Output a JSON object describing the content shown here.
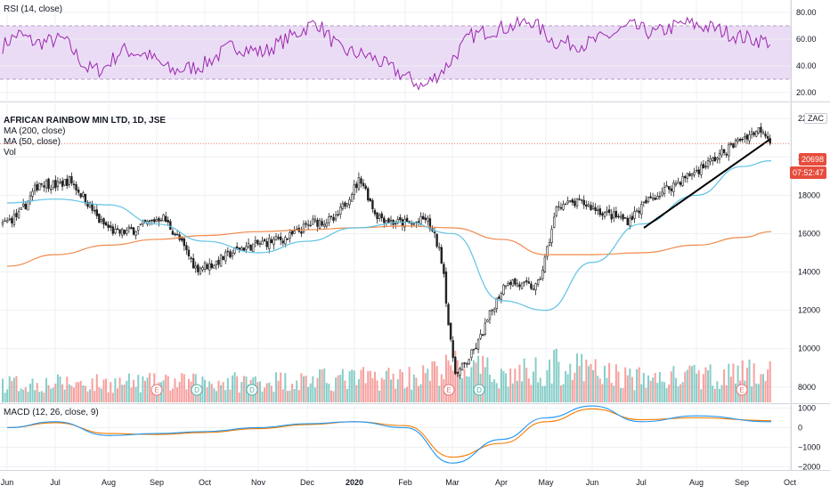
{
  "rsi_panel": {
    "label": "RSI (14, close)",
    "axis_ticks": [
      "80.00",
      "60.00",
      "40.00",
      "20.00"
    ],
    "band_upper": 70,
    "band_lower": 30,
    "range": [
      14,
      88
    ]
  },
  "price_panel": {
    "title": "AFRICAN RAINBOW MIN LTD, 1D, JSE",
    "ma200_label": "MA (200, close)",
    "ma50_label": "MA (50, close)",
    "vol_label": "Vol",
    "currency": "ZAC",
    "last_price": "20698",
    "countdown": "07:52:47",
    "axis_ticks": [
      "22000",
      "20000",
      "18000",
      "16000",
      "14000",
      "12000",
      "10000",
      "8000"
    ],
    "range": [
      7200,
      22800
    ]
  },
  "macd_panel": {
    "label": "MACD (12, 26, close, 9)",
    "axis_ticks": [
      "1000",
      "0",
      "−1000",
      "−2000"
    ],
    "range": [
      -2150,
      1150
    ]
  },
  "x_axis": {
    "labels": [
      "Jun",
      "Jul",
      "Aug",
      "Sep",
      "Oct",
      "Nov",
      "Dec",
      "2020",
      "Feb",
      "Mar",
      "Apr",
      "May",
      "Jun",
      "Jul",
      "Aug",
      "Sep",
      "Oct"
    ]
  },
  "event_markers": [
    "E",
    "D",
    "D",
    "E",
    "D",
    "E"
  ],
  "colors": {
    "up": "#26a69a",
    "down": "#ef5350",
    "ma50": "#5fc3e4",
    "ma200": "#f08a4b",
    "rsi": "#9c27b0",
    "rsi_band": "#e9d8f4",
    "macd": "#2196f3",
    "signal": "#f57c00",
    "grid": "#eef0f3",
    "trendline": "#000000"
  },
  "chart_data": [
    {
      "type": "line",
      "title": "RSI (14, close)",
      "x": [
        "Jun",
        "Jul",
        "Aug",
        "Sep",
        "Oct",
        "Nov",
        "Dec",
        "2020",
        "Feb",
        "Mar",
        "Apr",
        "May",
        "Jun",
        "Jul",
        "Aug",
        "Sep"
      ],
      "series": [
        {
          "name": "RSI (14, close)",
          "values": [
            58,
            63,
            38,
            52,
            36,
            48,
            54,
            72,
            45,
            28,
            52,
            62,
            74,
            58,
            68,
            55
          ]
        }
      ],
      "ylim": [
        14,
        88
      ]
    },
    {
      "type": "line",
      "title": "AFRICAN RAINBOW MIN LTD, 1D, JSE",
      "x": [
        "Jun",
        "Jul",
        "Aug",
        "Sep",
        "Oct",
        "Nov",
        "Dec",
        "2020",
        "Feb",
        "Mar",
        "Apr",
        "May",
        "Jun",
        "Jul",
        "Aug",
        "Sep",
        "Oct"
      ],
      "series": [
        {
          "name": "Close",
          "values": [
            16600,
            18700,
            16000,
            17000,
            14000,
            15000,
            15500,
            16600,
            16500,
            9500,
            12000,
            13200,
            17900,
            17300,
            19800,
            21300,
            20698
          ]
        },
        {
          "name": "MA (50, close)",
          "values": [
            17600,
            17800,
            17500,
            16500,
            15600,
            15000,
            15600,
            16300,
            16600,
            16000,
            12500,
            12000,
            14500,
            16500,
            18000,
            19500,
            19800
          ]
        },
        {
          "name": "MA (200, close)",
          "values": [
            14300,
            14900,
            15400,
            15700,
            15900,
            16100,
            16200,
            16300,
            16400,
            16300,
            15700,
            14900,
            14900,
            15000,
            15400,
            15800,
            16100
          ]
        }
      ],
      "ylim": [
        7200,
        22800
      ]
    },
    {
      "type": "line",
      "title": "MACD (12, 26, close, 9)",
      "x": [
        "Jun",
        "Jul",
        "Aug",
        "Sep",
        "Oct",
        "Nov",
        "Dec",
        "2020",
        "Feb",
        "Mar",
        "Apr",
        "May",
        "Jun",
        "Jul",
        "Aug",
        "Sep"
      ],
      "series": [
        {
          "name": "MACD",
          "values": [
            0,
            300,
            -400,
            -300,
            -200,
            0,
            200,
            300,
            0,
            -1800,
            -600,
            500,
            1100,
            300,
            600,
            300
          ]
        },
        {
          "name": "Signal",
          "values": [
            0,
            250,
            -300,
            -350,
            -250,
            -50,
            150,
            300,
            100,
            -1500,
            -800,
            300,
            950,
            400,
            500,
            350
          ]
        }
      ],
      "ylim": [
        -2150,
        1150
      ]
    }
  ]
}
